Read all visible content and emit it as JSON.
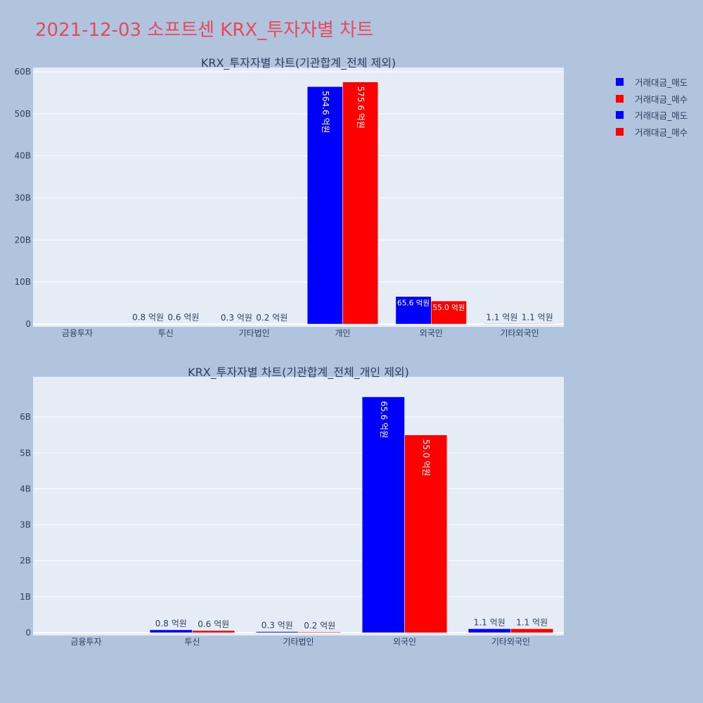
{
  "page": {
    "title": "2021-12-03 소프트센 KRX_투자자별 차트",
    "background": "#b0c4de",
    "plot_background": "#e5ecf6"
  },
  "legend": [
    {
      "label": "거래대금_매도",
      "color": "#0000ff"
    },
    {
      "label": "거래대금_매수",
      "color": "#ff0000"
    },
    {
      "label": "거래대금_매도",
      "color": "#0000ff"
    },
    {
      "label": "거래대금_매수",
      "color": "#ff0000"
    }
  ],
  "chart_data": [
    {
      "type": "bar",
      "title": "KRX_투자자별 차트(기관합계_전체 제외)",
      "categories": [
        "금융투자",
        "투신",
        "기타법인",
        "개인",
        "외국인",
        "기타외국인"
      ],
      "ylim": [
        0,
        60
      ],
      "y_ticks": [
        0,
        10,
        20,
        30,
        40,
        50,
        60
      ],
      "y_tick_labels": [
        "0",
        "10B",
        "20B",
        "30B",
        "40B",
        "50B",
        "60B"
      ],
      "series": [
        {
          "name": "거래대금_매도",
          "color": "#0000ff",
          "values": [
            0,
            0.08,
            0.03,
            56.46,
            6.56,
            0.11
          ],
          "labels": [
            "",
            "0.8 억원",
            "0.3 억원",
            "564.6 억원",
            "65.6 억원",
            "1.1 억원"
          ]
        },
        {
          "name": "거래대금_매수",
          "color": "#ff0000",
          "values": [
            0,
            0.06,
            0.02,
            57.56,
            5.5,
            0.11
          ],
          "labels": [
            "",
            "0.6 억원",
            "0.2 억원",
            "575.6 억원",
            "55.0 억원",
            "1.1 억원"
          ]
        }
      ],
      "grid": true
    },
    {
      "type": "bar",
      "title": "KRX_투자자별 차트(기관합계_전체_개인 제외)",
      "categories": [
        "금융투자",
        "투신",
        "기타법인",
        "외국인",
        "기타외국인"
      ],
      "ylim": [
        0,
        7
      ],
      "y_ticks": [
        0,
        1,
        2,
        3,
        4,
        5,
        6
      ],
      "y_tick_labels": [
        "0",
        "1B",
        "2B",
        "3B",
        "4B",
        "5B",
        "6B"
      ],
      "series": [
        {
          "name": "거래대금_매도",
          "color": "#0000ff",
          "values": [
            0,
            0.08,
            0.03,
            6.56,
            0.11
          ],
          "labels": [
            "",
            "0.8 억원",
            "0.3 억원",
            "65.6 억원",
            "1.1 억원"
          ]
        },
        {
          "name": "거래대금_매수",
          "color": "#ff0000",
          "values": [
            0,
            0.06,
            0.02,
            5.5,
            0.11
          ],
          "labels": [
            "",
            "0.6 억원",
            "0.2 억원",
            "55.0 억원",
            "1.1 억원"
          ]
        }
      ],
      "grid": true
    }
  ]
}
